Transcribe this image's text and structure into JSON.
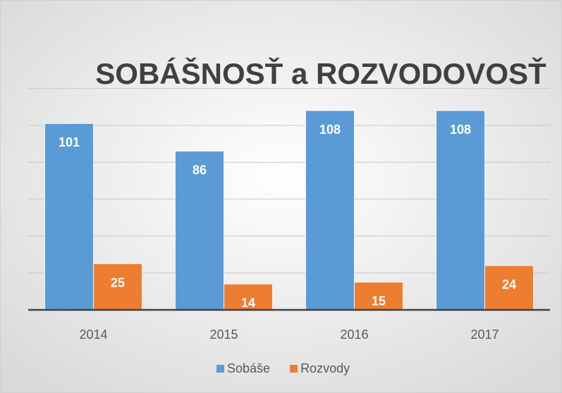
{
  "chart_data": {
    "type": "bar",
    "title": "SOBÁŠNOSŤ a ROZVODOVOSŤ",
    "categories": [
      "2014",
      "2015",
      "2016",
      "2017"
    ],
    "series": [
      {
        "name": "Sobáše",
        "color": "#5b9bd5",
        "values": [
          101,
          86,
          108,
          108
        ]
      },
      {
        "name": "Rozvody",
        "color": "#ed7d31",
        "values": [
          25,
          14,
          15,
          24
        ]
      }
    ],
    "ylim": [
      0,
      120
    ],
    "yticks": [
      0,
      20,
      40,
      60,
      80,
      100,
      120
    ],
    "grid": true,
    "legend": "bottom"
  }
}
